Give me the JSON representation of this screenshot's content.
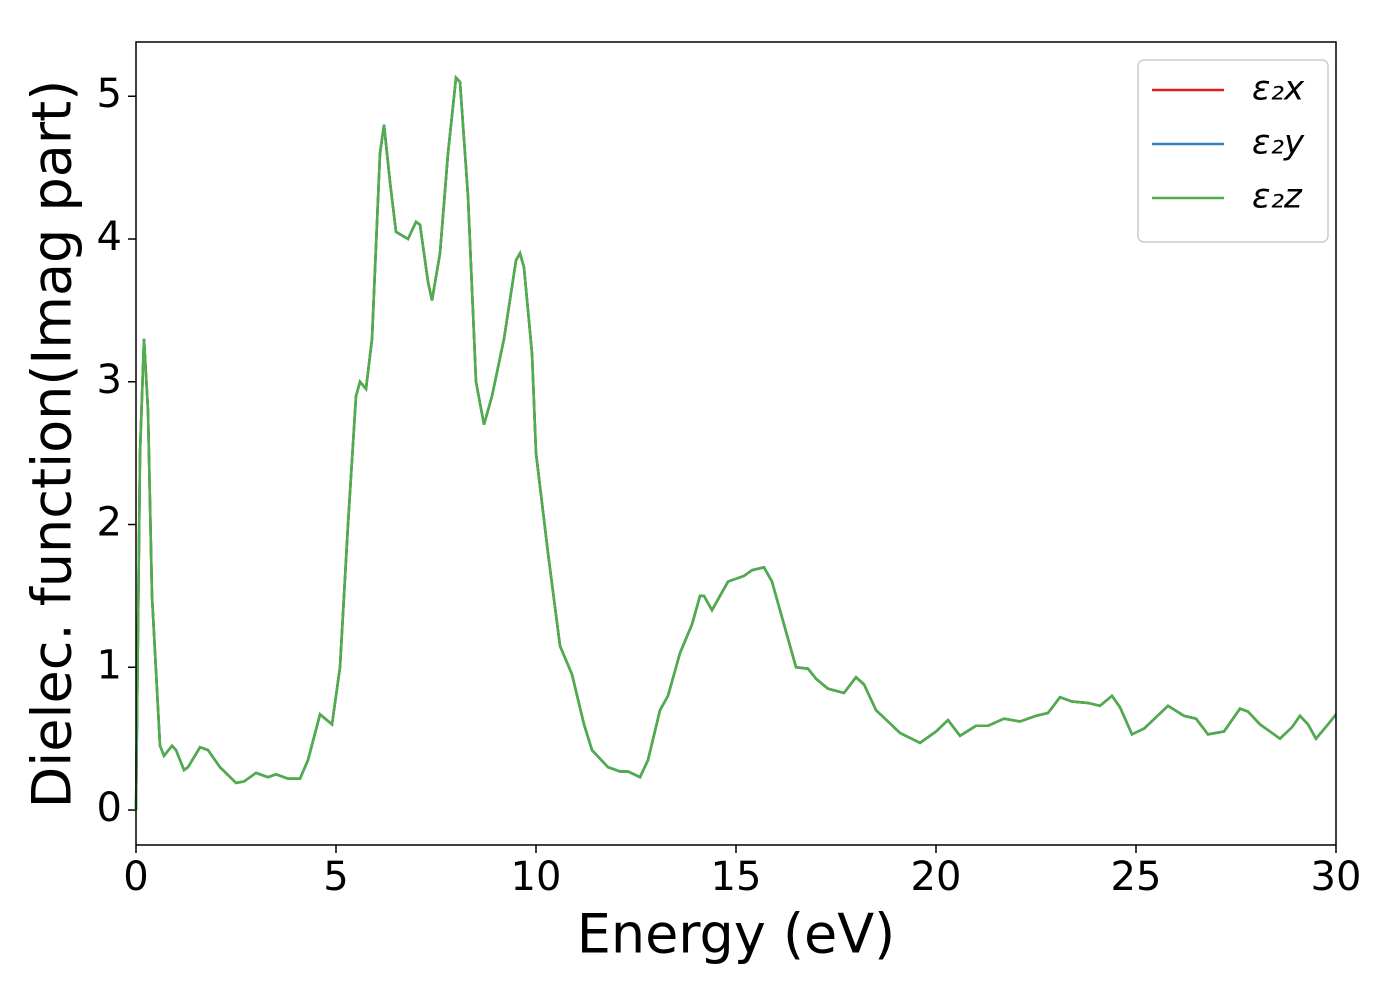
{
  "chart_data": {
    "type": "line",
    "xlabel": "Energy (eV)",
    "ylabel": "Dielec. function(Imag part)",
    "xlim": [
      0,
      30
    ],
    "xticks": [
      0,
      5,
      10,
      15,
      20,
      25,
      30
    ],
    "ylim": [
      -0.245,
      5.38
    ],
    "yticks": [
      0,
      1,
      2,
      3,
      4,
      5
    ],
    "legend": "upper right",
    "x": [
      0,
      0.1,
      0.2,
      0.3,
      0.4,
      0.6,
      0.7,
      0.9,
      1.0,
      1.2,
      1.3,
      1.6,
      1.8,
      2.1,
      2.5,
      2.7,
      3.0,
      3.3,
      3.5,
      3.8,
      4.1,
      4.3,
      4.6,
      4.9,
      5.1,
      5.3,
      5.5,
      5.6,
      5.75,
      5.9,
      6.1,
      6.2,
      6.35,
      6.5,
      6.8,
      7.0,
      7.1,
      7.3,
      7.4,
      7.6,
      7.8,
      8.0,
      8.1,
      8.3,
      8.5,
      8.7,
      8.9,
      9.2,
      9.5,
      9.6,
      9.7,
      9.9,
      10.0,
      10.3,
      10.6,
      10.9,
      11.2,
      11.4,
      11.8,
      12.1,
      12.3,
      12.6,
      12.8,
      13.1,
      13.3,
      13.6,
      13.9,
      14.1,
      14.2,
      14.4,
      14.6,
      14.8,
      15.2,
      15.4,
      15.7,
      15.9,
      16.1,
      16.5,
      16.8,
      17.0,
      17.3,
      17.7,
      18.0,
      18.2,
      18.5,
      18.8,
      19.1,
      19.6,
      20.0,
      20.3,
      20.6,
      21.0,
      21.3,
      21.7,
      22.1,
      22.5,
      22.8,
      23.1,
      23.4,
      23.8,
      24.1,
      24.4,
      24.6,
      24.9,
      25.2,
      25.5,
      25.8,
      26.2,
      26.5,
      26.8,
      27.2,
      27.6,
      27.8,
      28.1,
      28.6,
      28.9,
      29.1,
      29.3,
      29.5,
      29.8,
      30.0
    ],
    "series": [
      {
        "name": "ε₂x",
        "color": "#e41a1c",
        "values": [
          0,
          2.5,
          3.3,
          2.8,
          1.5,
          0.45,
          0.38,
          0.45,
          0.42,
          0.28,
          0.3,
          0.44,
          0.42,
          0.3,
          0.19,
          0.2,
          0.26,
          0.23,
          0.25,
          0.22,
          0.22,
          0.35,
          0.67,
          0.6,
          1.0,
          2.0,
          2.9,
          3.0,
          2.95,
          3.3,
          4.6,
          4.8,
          4.4,
          4.05,
          4.0,
          4.12,
          4.1,
          3.7,
          3.57,
          3.9,
          4.6,
          5.13,
          5.1,
          4.3,
          3.0,
          2.7,
          2.9,
          3.3,
          3.85,
          3.9,
          3.8,
          3.2,
          2.5,
          1.8,
          1.15,
          0.95,
          0.6,
          0.42,
          0.3,
          0.27,
          0.27,
          0.23,
          0.35,
          0.7,
          0.8,
          1.1,
          1.3,
          1.5,
          1.5,
          1.4,
          1.5,
          1.6,
          1.64,
          1.68,
          1.7,
          1.6,
          1.4,
          1.0,
          0.99,
          0.92,
          0.85,
          0.82,
          0.93,
          0.88,
          0.7,
          0.62,
          0.54,
          0.47,
          0.55,
          0.63,
          0.52,
          0.59,
          0.59,
          0.64,
          0.62,
          0.66,
          0.68,
          0.79,
          0.76,
          0.75,
          0.73,
          0.8,
          0.72,
          0.53,
          0.57,
          0.65,
          0.73,
          0.66,
          0.64,
          0.53,
          0.55,
          0.71,
          0.69,
          0.6,
          0.5,
          0.58,
          0.66,
          0.6,
          0.5,
          0.6,
          0.67
        ]
      },
      {
        "name": "ε₂y",
        "color": "#377eb8",
        "values": [
          0,
          2.5,
          3.3,
          2.8,
          1.5,
          0.45,
          0.38,
          0.45,
          0.42,
          0.28,
          0.3,
          0.44,
          0.42,
          0.3,
          0.19,
          0.2,
          0.26,
          0.23,
          0.25,
          0.22,
          0.22,
          0.35,
          0.67,
          0.6,
          1.0,
          2.0,
          2.9,
          3.0,
          2.95,
          3.3,
          4.6,
          4.8,
          4.4,
          4.05,
          4.0,
          4.12,
          4.1,
          3.7,
          3.57,
          3.9,
          4.6,
          5.13,
          5.1,
          4.3,
          3.0,
          2.7,
          2.9,
          3.3,
          3.85,
          3.9,
          3.8,
          3.2,
          2.5,
          1.8,
          1.15,
          0.95,
          0.6,
          0.42,
          0.3,
          0.27,
          0.27,
          0.23,
          0.35,
          0.7,
          0.8,
          1.1,
          1.3,
          1.5,
          1.5,
          1.4,
          1.5,
          1.6,
          1.64,
          1.68,
          1.7,
          1.6,
          1.4,
          1.0,
          0.99,
          0.92,
          0.85,
          0.82,
          0.93,
          0.88,
          0.7,
          0.62,
          0.54,
          0.47,
          0.55,
          0.63,
          0.52,
          0.59,
          0.59,
          0.64,
          0.62,
          0.66,
          0.68,
          0.79,
          0.76,
          0.75,
          0.73,
          0.8,
          0.72,
          0.53,
          0.57,
          0.65,
          0.73,
          0.66,
          0.64,
          0.53,
          0.55,
          0.71,
          0.69,
          0.6,
          0.5,
          0.58,
          0.66,
          0.6,
          0.5,
          0.6,
          0.67
        ]
      },
      {
        "name": "ε₂z",
        "color": "#4daf4a",
        "values": [
          0,
          2.5,
          3.3,
          2.8,
          1.5,
          0.45,
          0.38,
          0.45,
          0.42,
          0.28,
          0.3,
          0.44,
          0.42,
          0.3,
          0.19,
          0.2,
          0.26,
          0.23,
          0.25,
          0.22,
          0.22,
          0.35,
          0.67,
          0.6,
          1.0,
          2.0,
          2.9,
          3.0,
          2.95,
          3.3,
          4.6,
          4.8,
          4.4,
          4.05,
          4.0,
          4.12,
          4.1,
          3.7,
          3.57,
          3.9,
          4.6,
          5.13,
          5.1,
          4.3,
          3.0,
          2.7,
          2.9,
          3.3,
          3.85,
          3.9,
          3.8,
          3.2,
          2.5,
          1.8,
          1.15,
          0.95,
          0.6,
          0.42,
          0.3,
          0.27,
          0.27,
          0.23,
          0.35,
          0.7,
          0.8,
          1.1,
          1.3,
          1.5,
          1.5,
          1.4,
          1.5,
          1.6,
          1.64,
          1.68,
          1.7,
          1.6,
          1.4,
          1.0,
          0.99,
          0.92,
          0.85,
          0.82,
          0.93,
          0.88,
          0.7,
          0.62,
          0.54,
          0.47,
          0.55,
          0.63,
          0.52,
          0.59,
          0.59,
          0.64,
          0.62,
          0.66,
          0.68,
          0.79,
          0.76,
          0.75,
          0.73,
          0.8,
          0.72,
          0.53,
          0.57,
          0.65,
          0.73,
          0.66,
          0.64,
          0.53,
          0.55,
          0.71,
          0.69,
          0.6,
          0.5,
          0.58,
          0.66,
          0.6,
          0.5,
          0.6,
          0.67
        ]
      }
    ]
  }
}
